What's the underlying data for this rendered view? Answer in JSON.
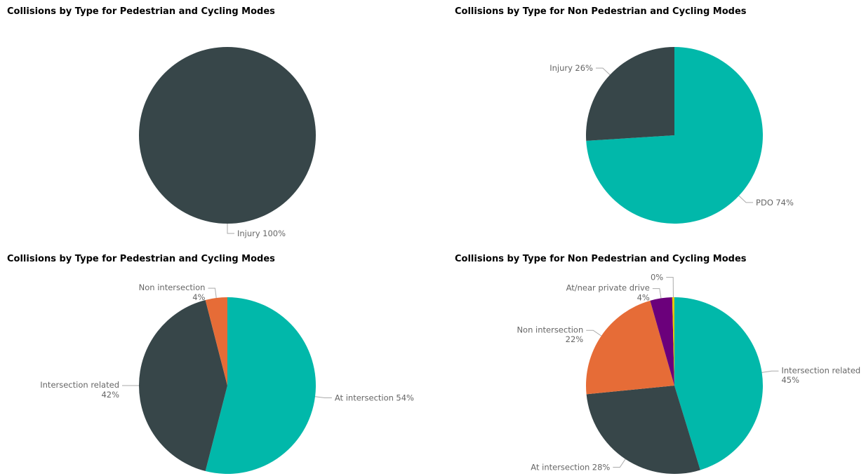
{
  "chart_data": [
    {
      "type": "pie",
      "title": "Collisions by Type for Pedestrian and Cycling Modes",
      "categories": [
        "Injury"
      ],
      "values": [
        100
      ],
      "value_labels": [
        "100%"
      ],
      "colors": [
        "#374649"
      ]
    },
    {
      "type": "pie",
      "title": "Collisions by Type for Non Pedestrian and Cycling Modes",
      "categories": [
        "PDO",
        "Injury"
      ],
      "values": [
        74,
        26
      ],
      "value_labels": [
        "74%",
        "26%"
      ],
      "colors": [
        "#01b8aa",
        "#374649"
      ]
    },
    {
      "type": "pie",
      "title": "Collisions by Type for Pedestrian and Cycling Modes",
      "categories": [
        "At intersection",
        "Intersection related",
        "Non intersection"
      ],
      "values": [
        54,
        42,
        4
      ],
      "value_labels": [
        "54%",
        "42%",
        "4%"
      ],
      "colors": [
        "#01b8aa",
        "#374649",
        "#e66c37"
      ]
    },
    {
      "type": "pie",
      "title": "Collisions by Type for Non Pedestrian and Cycling Modes",
      "categories": [
        "Intersection related",
        "At intersection",
        "Non intersection",
        "At/near private drive",
        null
      ],
      "values": [
        45,
        28,
        22,
        4,
        0.4
      ],
      "value_labels": [
        "45%",
        "28%",
        "22%",
        "4%",
        "0%"
      ],
      "colors": [
        "#01b8aa",
        "#374649",
        "#e66c37",
        "#6b007b",
        "#e8c600"
      ]
    }
  ]
}
